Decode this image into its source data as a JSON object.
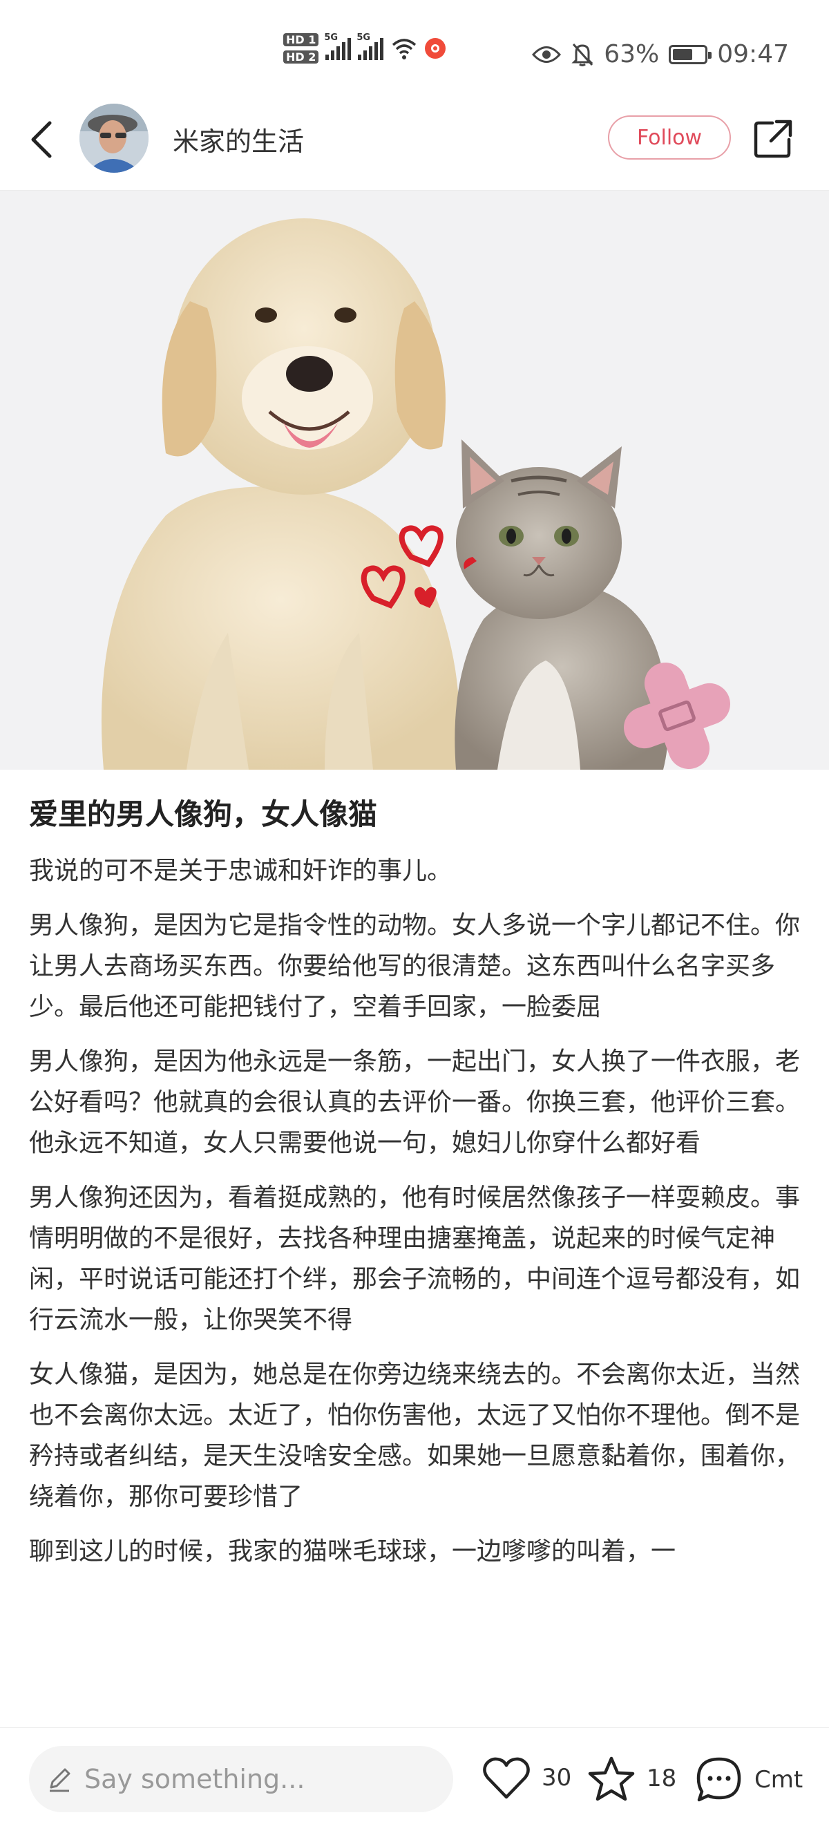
{
  "status_bar": {
    "hd1": "HD 1",
    "hd2": "HD 2",
    "signal_label": "5G",
    "battery_percent": "63%",
    "battery_level": 0.63,
    "time": "09:47"
  },
  "header": {
    "author_name": "米家的生活",
    "follow_label": "Follow"
  },
  "article": {
    "title": "爱里的男人像狗，女人像猫",
    "paragraphs": [
      "我说的可不是关于忠诚和奸诈的事儿。",
      "男人像狗，是因为它是指令性的动物。女人多说一个字儿都记不住。你让男人去商场买东西。你要给他写的很清楚。这东西叫什么名字买多少。最后他还可能把钱付了，空着手回家，一脸委屈",
      "男人像狗，是因为他永远是一条筋，一起出门，女人换了一件衣服，老公好看吗？他就真的会很认真的去评价一番。你换三套，他评价三套。他永远不知道，女人只需要他说一句，媳妇儿你穿什么都好看",
      "男人像狗还因为，看着挺成熟的，他有时候居然像孩子一样耍赖皮。事情明明做的不是很好，去找各种理由搪塞掩盖，说起来的时候气定神闲，平时说话可能还打个绊，那会子流畅的，中间连个逗号都没有，如行云流水一般，让你哭笑不得",
      "女人像猫，是因为，她总是在你旁边绕来绕去的。不会离你太近，当然也不会离你太远。太近了，怕你伤害他，太远了又怕你不理他。倒不是矜持或者纠结，是天生没啥安全感。如果她一旦愿意黏着你，围着你，绕着你，那你可要珍惜了",
      "聊到这儿的时候，我家的猫咪毛球球，一边嗲嗲的叫着，一"
    ]
  },
  "bottom_bar": {
    "comment_placeholder": "Say something...",
    "likes": "30",
    "favorites": "18",
    "comment_label": "Cmt"
  }
}
